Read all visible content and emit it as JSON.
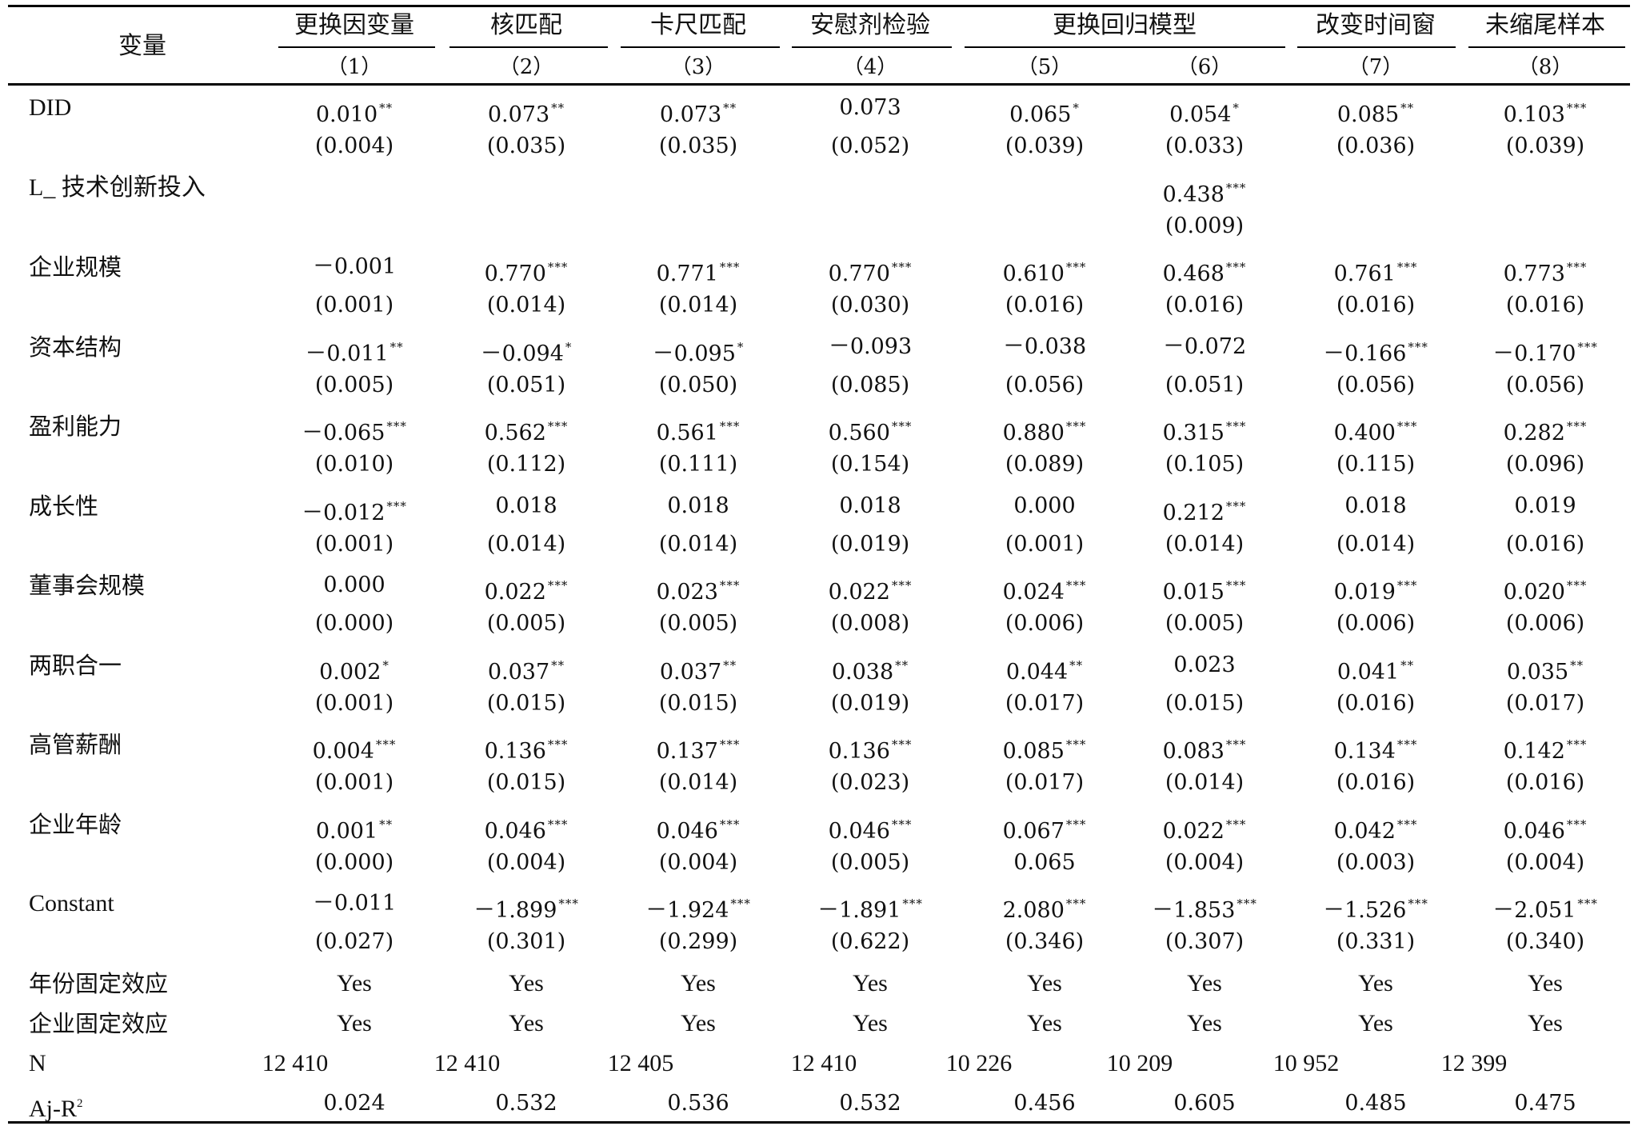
{
  "header": {
    "variable_label": "变量",
    "groups": [
      "更换因变量",
      "核匹配",
      "卡尺匹配",
      "安慰剂检验",
      "更换回归模型",
      "改变时间窗",
      "未缩尾样本"
    ],
    "columns": [
      "（1）",
      "（2）",
      "（3）",
      "（4）",
      "（5）",
      "（6）",
      "（7）",
      "（8）"
    ]
  },
  "rows": [
    {
      "label": "DID",
      "cells": [
        {
          "v": "0.010",
          "s": "**"
        },
        {
          "v": "0.073",
          "s": "**"
        },
        {
          "v": "0.073",
          "s": "**"
        },
        {
          "v": "0.073",
          "s": ""
        },
        {
          "v": "0.065",
          "s": "*"
        },
        {
          "v": "0.054",
          "s": "*"
        },
        {
          "v": "0.085",
          "s": "**"
        },
        {
          "v": "0.103",
          "s": "***"
        }
      ],
      "se": [
        "(0.004)",
        "(0.035)",
        "(0.035)",
        "(0.052)",
        "(0.039)",
        "(0.033)",
        "(0.036)",
        "(0.039)"
      ]
    },
    {
      "label": "L_ 技术创新投入",
      "cells": [
        {
          "v": "",
          "s": ""
        },
        {
          "v": "",
          "s": ""
        },
        {
          "v": "",
          "s": ""
        },
        {
          "v": "",
          "s": ""
        },
        {
          "v": "",
          "s": ""
        },
        {
          "v": "0.438",
          "s": "***"
        },
        {
          "v": "",
          "s": ""
        },
        {
          "v": "",
          "s": ""
        }
      ],
      "se": [
        "",
        "",
        "",
        "",
        "",
        "(0.009)",
        "",
        ""
      ]
    },
    {
      "label": "企业规模",
      "cells": [
        {
          "v": "－0.001",
          "s": ""
        },
        {
          "v": "0.770",
          "s": "***"
        },
        {
          "v": "0.771",
          "s": "***"
        },
        {
          "v": "0.770",
          "s": "***"
        },
        {
          "v": "0.610",
          "s": "***"
        },
        {
          "v": "0.468",
          "s": "***"
        },
        {
          "v": "0.761",
          "s": "***"
        },
        {
          "v": "0.773",
          "s": "***"
        }
      ],
      "se": [
        "(0.001)",
        "(0.014)",
        "(0.014)",
        "(0.030)",
        "(0.016)",
        "(0.016)",
        "(0.016)",
        "(0.016)"
      ]
    },
    {
      "label": "资本结构",
      "cells": [
        {
          "v": "－0.011",
          "s": "**"
        },
        {
          "v": "－0.094",
          "s": "*"
        },
        {
          "v": "－0.095",
          "s": "*"
        },
        {
          "v": "－0.093",
          "s": ""
        },
        {
          "v": "－0.038",
          "s": ""
        },
        {
          "v": "－0.072",
          "s": ""
        },
        {
          "v": "－0.166",
          "s": "***"
        },
        {
          "v": "－0.170",
          "s": "***"
        }
      ],
      "se": [
        "(0.005)",
        "(0.051)",
        "(0.050)",
        "(0.085)",
        "(0.056)",
        "(0.051)",
        "(0.056)",
        "(0.056)"
      ]
    },
    {
      "label": "盈利能力",
      "cells": [
        {
          "v": "－0.065",
          "s": "***"
        },
        {
          "v": "0.562",
          "s": "***"
        },
        {
          "v": "0.561",
          "s": "***"
        },
        {
          "v": "0.560",
          "s": "***"
        },
        {
          "v": "0.880",
          "s": "***"
        },
        {
          "v": "0.315",
          "s": "***"
        },
        {
          "v": "0.400",
          "s": "***"
        },
        {
          "v": "0.282",
          "s": "***"
        }
      ],
      "se": [
        "(0.010)",
        "(0.112)",
        "(0.111)",
        "(0.154)",
        "(0.089)",
        "(0.105)",
        "(0.115)",
        "(0.096)"
      ]
    },
    {
      "label": "成长性",
      "cells": [
        {
          "v": "－0.012",
          "s": "***"
        },
        {
          "v": "0.018",
          "s": ""
        },
        {
          "v": "0.018",
          "s": ""
        },
        {
          "v": "0.018",
          "s": ""
        },
        {
          "v": "0.000",
          "s": ""
        },
        {
          "v": "0.212",
          "s": "***"
        },
        {
          "v": "0.018",
          "s": ""
        },
        {
          "v": "0.019",
          "s": ""
        }
      ],
      "se": [
        "(0.001)",
        "(0.014)",
        "(0.014)",
        "(0.019)",
        "(0.001)",
        "(0.014)",
        "(0.014)",
        "(0.016)"
      ]
    },
    {
      "label": "董事会规模",
      "cells": [
        {
          "v": "0.000",
          "s": ""
        },
        {
          "v": "0.022",
          "s": "***"
        },
        {
          "v": "0.023",
          "s": "***"
        },
        {
          "v": "0.022",
          "s": "***"
        },
        {
          "v": "0.024",
          "s": "***"
        },
        {
          "v": "0.015",
          "s": "***"
        },
        {
          "v": "0.019",
          "s": "***"
        },
        {
          "v": "0.020",
          "s": "***"
        }
      ],
      "se": [
        "(0.000)",
        "(0.005)",
        "(0.005)",
        "(0.008)",
        "(0.006)",
        "(0.005)",
        "(0.006)",
        "(0.006)"
      ]
    },
    {
      "label": "两职合一",
      "cells": [
        {
          "v": "0.002",
          "s": "*"
        },
        {
          "v": "0.037",
          "s": "**"
        },
        {
          "v": "0.037",
          "s": "**"
        },
        {
          "v": "0.038",
          "s": "**"
        },
        {
          "v": "0.044",
          "s": "**"
        },
        {
          "v": "0.023",
          "s": ""
        },
        {
          "v": "0.041",
          "s": "**"
        },
        {
          "v": "0.035",
          "s": "**"
        }
      ],
      "se": [
        "(0.001)",
        "(0.015)",
        "(0.015)",
        "(0.019)",
        "(0.017)",
        "(0.015)",
        "(0.016)",
        "(0.017)"
      ]
    },
    {
      "label": "高管薪酬",
      "cells": [
        {
          "v": "0.004",
          "s": "***"
        },
        {
          "v": "0.136",
          "s": "***"
        },
        {
          "v": "0.137",
          "s": "***"
        },
        {
          "v": "0.136",
          "s": "***"
        },
        {
          "v": "0.085",
          "s": "***"
        },
        {
          "v": "0.083",
          "s": "***"
        },
        {
          "v": "0.134",
          "s": "***"
        },
        {
          "v": "0.142",
          "s": "***"
        }
      ],
      "se": [
        "(0.001)",
        "(0.015)",
        "(0.014)",
        "(0.023)",
        "(0.017)",
        "(0.014)",
        "(0.016)",
        "(0.016)"
      ]
    },
    {
      "label": "企业年龄",
      "cells": [
        {
          "v": "0.001",
          "s": "**"
        },
        {
          "v": "0.046",
          "s": "***"
        },
        {
          "v": "0.046",
          "s": "***"
        },
        {
          "v": "0.046",
          "s": "***"
        },
        {
          "v": "0.067",
          "s": "***"
        },
        {
          "v": "0.022",
          "s": "***"
        },
        {
          "v": "0.042",
          "s": "***"
        },
        {
          "v": "0.046",
          "s": "***"
        }
      ],
      "se": [
        "(0.000)",
        "(0.004)",
        "(0.004)",
        "(0.005)",
        "0.065",
        "(0.004)",
        "(0.003)",
        "(0.004)"
      ]
    },
    {
      "label": "Constant",
      "cells": [
        {
          "v": "－0.011",
          "s": ""
        },
        {
          "v": "－1.899",
          "s": "***"
        },
        {
          "v": "－1.924",
          "s": "***"
        },
        {
          "v": "－1.891",
          "s": "***"
        },
        {
          "v": "2.080",
          "s": "***"
        },
        {
          "v": "－1.853",
          "s": "***"
        },
        {
          "v": "－1.526",
          "s": "***"
        },
        {
          "v": "－2.051",
          "s": "***"
        }
      ],
      "se": [
        "(0.027)",
        "(0.301)",
        "(0.299)",
        "(0.622)",
        "(0.346)",
        "(0.307)",
        "(0.331)",
        "(0.340)"
      ]
    }
  ],
  "fixed_effects": [
    {
      "label": "年份固定效应",
      "values": [
        "Yes",
        "Yes",
        "Yes",
        "Yes",
        "Yes",
        "Yes",
        "Yes",
        "Yes"
      ]
    },
    {
      "label": "企业固定效应",
      "values": [
        "Yes",
        "Yes",
        "Yes",
        "Yes",
        "Yes",
        "Yes",
        "Yes",
        "Yes"
      ]
    }
  ],
  "n_row": {
    "label": "N",
    "values": [
      "12 410",
      "12 410",
      "12 405",
      "12 410",
      "10 226",
      "10 209",
      "10 952",
      "12 399"
    ]
  },
  "r2_row": {
    "label_main": "Aj-R",
    "label_sup": "2",
    "values": [
      "0.024",
      "0.532",
      "0.536",
      "0.532",
      "0.456",
      "0.605",
      "0.485",
      "0.475"
    ]
  }
}
